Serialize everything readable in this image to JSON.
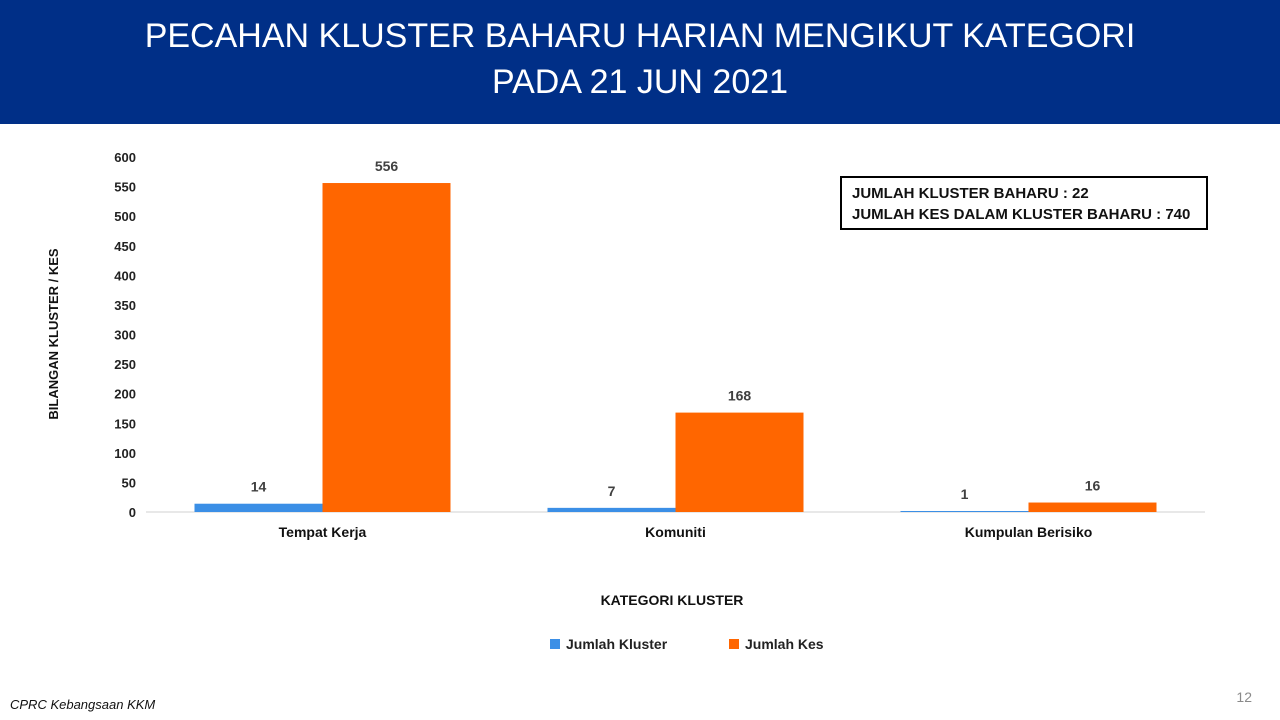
{
  "header": {
    "title_line1": "PECAHAN KLUSTER BAHARU HARIAN MENGIKUT KATEGORI",
    "title_line2": "PADA 21 JUN 2021"
  },
  "summary": {
    "line1": "JUMLAH KLUSTER BAHARU : 22",
    "line2": "JUMLAH KES DALAM KLUSTER BAHARU : 740"
  },
  "footer": {
    "source": "CPRC Kebangsaan KKM",
    "page_number": "12"
  },
  "chart_data": {
    "type": "bar",
    "categories": [
      "Tempat Kerja",
      "Komuniti",
      "Kumpulan Berisiko"
    ],
    "series": [
      {
        "name": "Jumlah Kluster",
        "values": [
          14,
          7,
          1
        ],
        "color": "#3b8fe6"
      },
      {
        "name": "Jumlah Kes",
        "values": [
          556,
          168,
          16
        ],
        "color": "#ff6600"
      }
    ],
    "xlabel": "KATEGORI KLUSTER",
    "ylabel": "BILANGAN KLUSTER / KES",
    "ylim": [
      0,
      600
    ],
    "yticks": [
      0,
      50,
      100,
      150,
      200,
      250,
      300,
      350,
      400,
      450,
      500,
      550,
      600
    ],
    "grid": false,
    "data_labels": true,
    "legend": "bottom-center"
  }
}
